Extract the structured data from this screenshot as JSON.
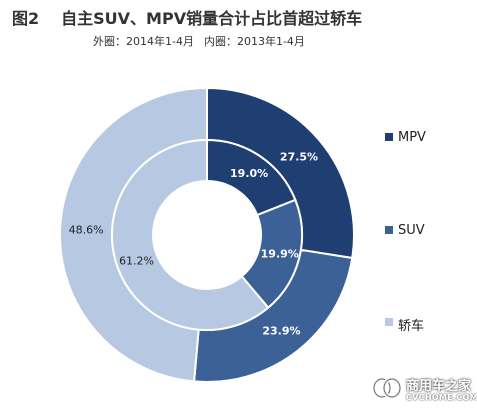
{
  "title": {
    "figure_label": "图2",
    "text": "自主SUV、MPV销量合计占比首超过轿车"
  },
  "subtitle": {
    "outer": "外圈：2014年1-4月",
    "inner": "内圈：2013年1-4月"
  },
  "colors": {
    "MPV": "#1f3f72",
    "SUV": "#3c6196",
    "轿车": "#b7c9e2"
  },
  "chart_data": {
    "type": "pie",
    "variant": "doughnut",
    "categories": [
      "MPV",
      "SUV",
      "轿车"
    ],
    "series": [
      {
        "ring": "outer",
        "values": [
          27.5,
          23.9,
          48.6
        ],
        "labels": [
          "27.5%",
          "23.9%",
          "48.6%"
        ]
      },
      {
        "ring": "inner",
        "values": [
          19.0,
          19.9,
          61.2
        ],
        "labels": [
          "19.0%",
          "19.9%",
          "61.2%"
        ]
      }
    ],
    "legend_position": "right"
  },
  "legend": {
    "items": [
      "MPV",
      "SUV",
      "轿车"
    ]
  },
  "watermark": {
    "cn_text": "商用车之家",
    "en_text": "CVCHOME.COM",
    "icon": "watermark-logo-icon"
  }
}
